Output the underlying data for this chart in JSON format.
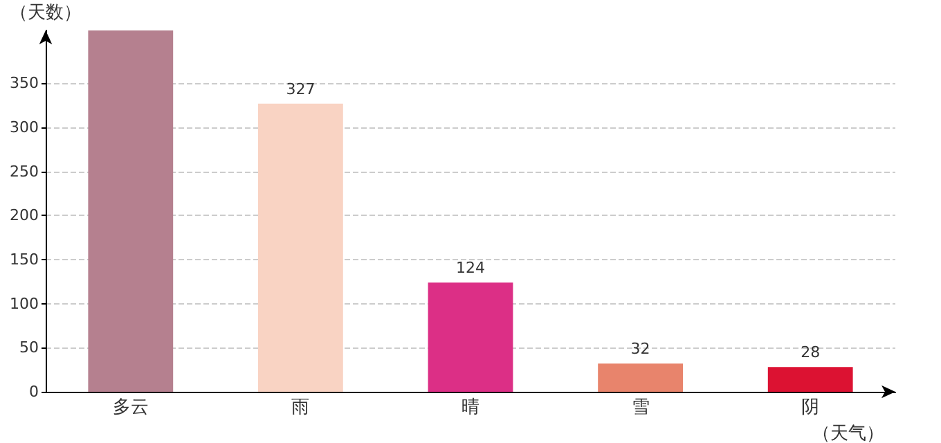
{
  "chart_data": {
    "type": "bar",
    "xlabel": "（天气）",
    "ylabel": "（天数）",
    "categories": [
      "多云",
      "雨",
      "晴",
      "雪",
      "阴"
    ],
    "values": [
      410,
      327,
      124,
      32,
      28
    ],
    "value_labels": [
      null,
      "327",
      "124",
      "32",
      "28"
    ],
    "colors": [
      "#b5808f",
      "#f9d3c3",
      "#dc2f86",
      "#e8846c",
      "#dc1232"
    ],
    "ylim": [
      0,
      410
    ],
    "yticks": [
      0,
      50,
      100,
      150,
      200,
      250,
      300,
      350
    ],
    "grid": "y"
  }
}
